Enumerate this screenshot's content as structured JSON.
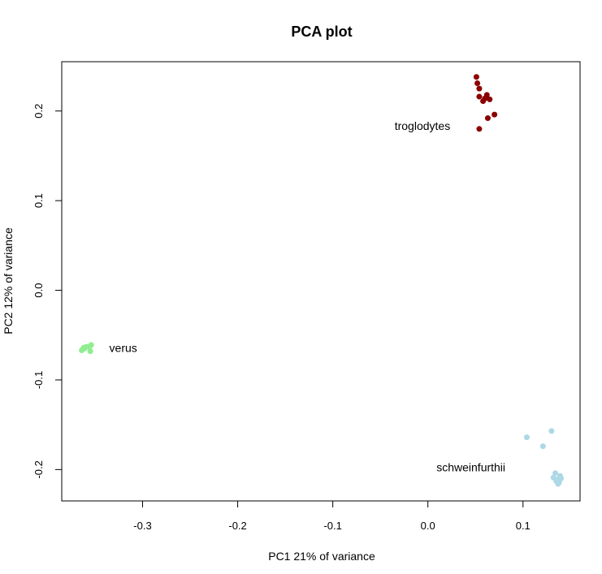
{
  "chart_data": {
    "type": "scatter",
    "title": "PCA plot",
    "xlabel": "PC1 21% of variance",
    "ylabel": "PC2 12% of variance",
    "xlim": [
      -0.385,
      0.16
    ],
    "ylim": [
      -0.235,
      0.255
    ],
    "xticks": [
      -0.3,
      -0.2,
      -0.1,
      0.0,
      0.1
    ],
    "xtick_labels": [
      "-0.3",
      "-0.2",
      "-0.1",
      "0.0",
      "0.1"
    ],
    "yticks": [
      -0.2,
      -0.1,
      0.0,
      0.1,
      0.2
    ],
    "ytick_labels": [
      "-0.2",
      "-0.1",
      "0.0",
      "0.1",
      "0.2"
    ],
    "grid": false,
    "legend": "none",
    "series": [
      {
        "color": "#8b0000",
        "points": [
          [
            0.051,
            0.238
          ],
          [
            0.052,
            0.231
          ],
          [
            0.054,
            0.225
          ],
          [
            0.054,
            0.216
          ],
          [
            0.058,
            0.211
          ],
          [
            0.06,
            0.214
          ],
          [
            0.062,
            0.218
          ],
          [
            0.065,
            0.213
          ],
          [
            0.07,
            0.196
          ],
          [
            0.063,
            0.192
          ],
          [
            0.054,
            0.18
          ]
        ]
      },
      {
        "color": "#90ee90",
        "points": [
          [
            -0.364,
            -0.067
          ],
          [
            -0.362,
            -0.064
          ],
          [
            -0.359,
            -0.063
          ],
          [
            -0.356,
            -0.063
          ],
          [
            -0.354,
            -0.061
          ],
          [
            -0.355,
            -0.068
          ],
          [
            -0.361,
            -0.065
          ]
        ]
      },
      {
        "color": "#add8e6",
        "points": [
          [
            0.13,
            -0.157
          ],
          [
            0.104,
            -0.164
          ],
          [
            0.121,
            -0.174
          ],
          [
            0.134,
            -0.204
          ],
          [
            0.132,
            -0.209
          ],
          [
            0.136,
            -0.211
          ],
          [
            0.139,
            -0.207
          ],
          [
            0.135,
            -0.213
          ],
          [
            0.137,
            -0.216
          ],
          [
            0.14,
            -0.21
          ],
          [
            0.138,
            -0.214
          ]
        ]
      }
    ],
    "annotations": [
      {
        "text": "troglodytes",
        "x": -0.035,
        "y": 0.179
      },
      {
        "text": "verus",
        "x": -0.335,
        "y": -0.069
      },
      {
        "text": "schweinfurthii",
        "x": 0.009,
        "y": -0.202
      }
    ]
  }
}
